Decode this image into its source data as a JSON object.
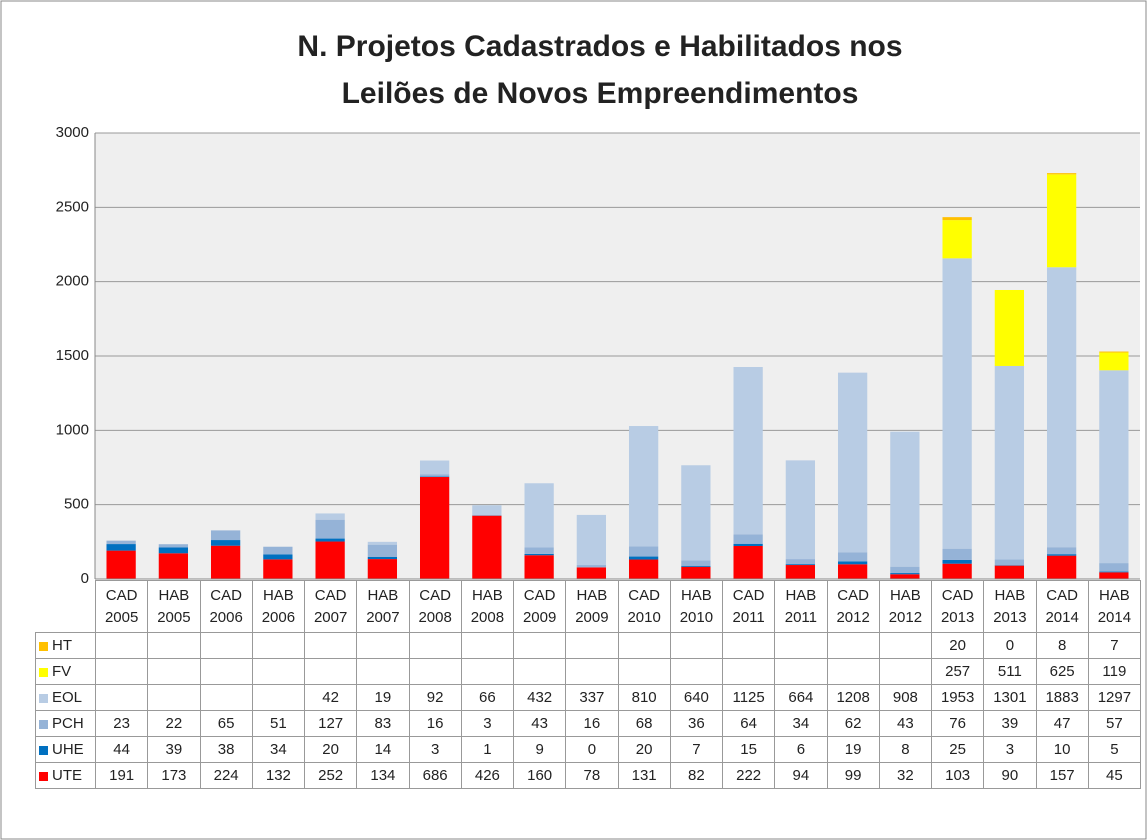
{
  "chart_data": {
    "type": "bar",
    "stacked": true,
    "title": [
      "N. Projetos Cadastrados e Habilitados nos",
      "Leilões de Novos Empreendimentos"
    ],
    "categories": [
      "CAD 2005",
      "HAB 2005",
      "CAD 2006",
      "HAB 2006",
      "CAD 2007",
      "HAB 2007",
      "CAD 2008",
      "HAB 2008",
      "CAD 2009",
      "HAB 2009",
      "CAD 2010",
      "HAB 2010",
      "CAD 2011",
      "HAB 2011",
      "CAD 2012",
      "HAB 2012",
      "CAD 2013",
      "HAB 2013",
      "CAD 2014",
      "HAB 2014"
    ],
    "series": [
      {
        "name": "UTE",
        "color": "#ff0000",
        "values": [
          191,
          173,
          224,
          132,
          252,
          134,
          686,
          426,
          160,
          78,
          131,
          82,
          222,
          94,
          99,
          32,
          103,
          90,
          157,
          45
        ]
      },
      {
        "name": "UHE",
        "color": "#0070c0",
        "values": [
          44,
          39,
          38,
          34,
          20,
          14,
          3,
          1,
          9,
          0,
          20,
          7,
          15,
          6,
          19,
          8,
          25,
          3,
          10,
          5
        ]
      },
      {
        "name": "PCH",
        "color": "#95b3d7",
        "values": [
          23,
          22,
          65,
          51,
          127,
          83,
          16,
          3,
          43,
          16,
          68,
          36,
          64,
          34,
          62,
          43,
          76,
          39,
          47,
          57
        ]
      },
      {
        "name": "EOL",
        "color": "#b8cce4",
        "values": [
          null,
          null,
          null,
          null,
          42,
          19,
          92,
          66,
          432,
          337,
          810,
          640,
          1125,
          664,
          1208,
          908,
          1953,
          1301,
          1883,
          1297
        ]
      },
      {
        "name": "FV",
        "color": "#ffff00",
        "values": [
          null,
          null,
          null,
          null,
          null,
          null,
          null,
          null,
          null,
          null,
          null,
          null,
          null,
          null,
          null,
          null,
          257,
          511,
          625,
          119
        ]
      },
      {
        "name": "HT",
        "color": "#ffc000",
        "values": [
          null,
          null,
          null,
          null,
          null,
          null,
          null,
          null,
          null,
          null,
          null,
          null,
          null,
          null,
          null,
          null,
          20,
          0,
          8,
          7
        ]
      }
    ],
    "ylim": [
      0,
      3000
    ],
    "yticks": [
      0,
      500,
      1000,
      1500,
      2000,
      2500,
      3000
    ],
    "grid": true,
    "data_table": true
  }
}
